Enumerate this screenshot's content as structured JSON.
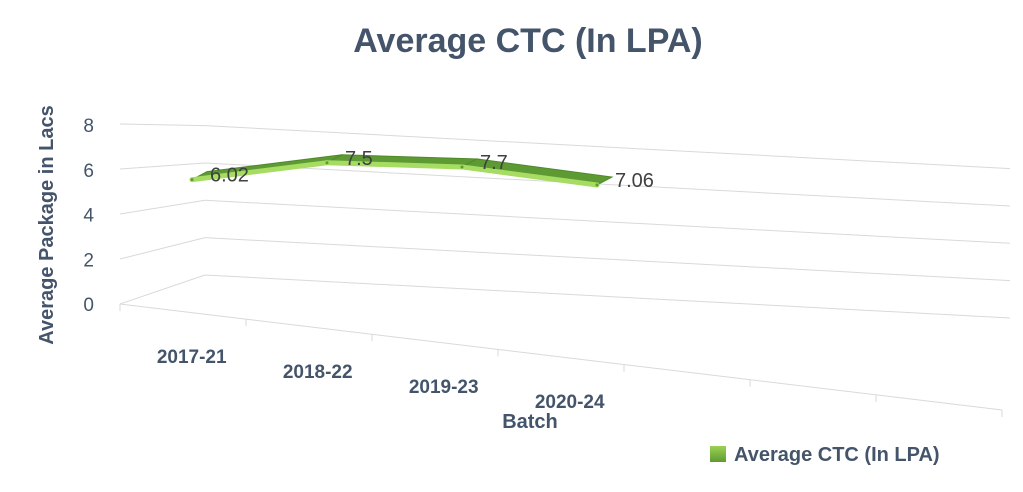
{
  "chart_data": {
    "type": "line",
    "title": "Average CTC (In LPA)",
    "categories": [
      "2017-21",
      "2018-22",
      "2019-23",
      "2020-24"
    ],
    "series": [
      {
        "name": "Average CTC (In LPA)",
        "values": [
          6.02,
          7.5,
          7.7,
          7.06
        ]
      }
    ],
    "data_labels": [
      "6.02",
      "7.5",
      "7.7",
      "7.06"
    ],
    "xlabel": "Batch",
    "ylabel": "Average Package in Lacs",
    "ylim": [
      0,
      8
    ],
    "yticks": [
      "0",
      "2",
      "4",
      "6",
      "8"
    ],
    "grid": true,
    "legend_position": "bottom-right",
    "style": "3d-ribbon",
    "colors": {
      "series": "#70ad47",
      "series_top": "#5e9a33",
      "text": "#44546a",
      "grid": "#d9d9d9"
    }
  }
}
